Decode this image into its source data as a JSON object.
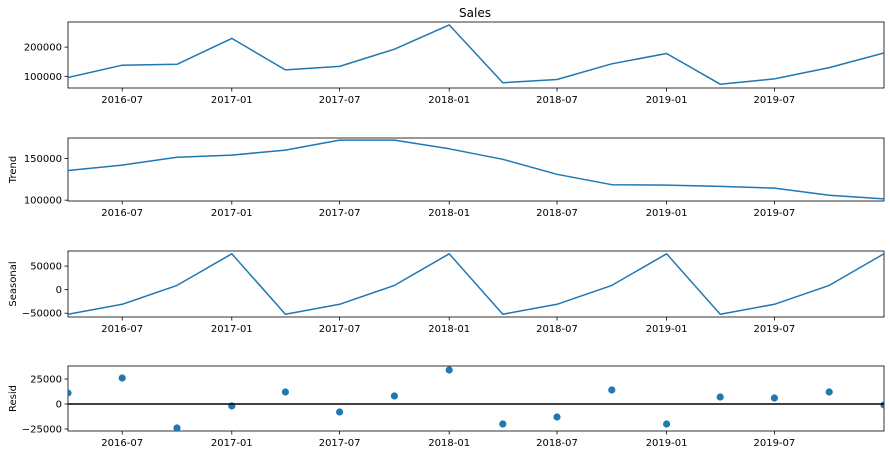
{
  "chart_data": [
    {
      "type": "line",
      "title": "Sales",
      "ylabel": "",
      "color": "#1f77b4",
      "x": [
        "2016-04-01",
        "2016-07-01",
        "2016-10-01",
        "2017-01-01",
        "2017-04-01",
        "2017-07-01",
        "2017-10-01",
        "2018-01-01",
        "2018-04-01",
        "2018-07-01",
        "2018-10-01",
        "2019-01-01",
        "2019-04-01",
        "2019-07-01",
        "2019-10-01",
        "2020-01-01"
      ],
      "values": [
        96000,
        138000,
        141000,
        230000,
        122000,
        134000,
        193000,
        276000,
        78000,
        89000,
        143000,
        178000,
        73000,
        91000,
        130000,
        180000
      ],
      "ylim": [
        60000,
        286000
      ],
      "yticks": [
        100000,
        200000
      ],
      "ytick_labels": [
        "100000",
        "200000"
      ]
    },
    {
      "type": "line",
      "title": "",
      "ylabel": "Trend",
      "color": "#1f77b4",
      "x": [
        "2016-04-01",
        "2016-07-01",
        "2016-10-01",
        "2017-01-01",
        "2017-04-01",
        "2017-07-01",
        "2017-10-01",
        "2018-01-01",
        "2018-04-01",
        "2018-07-01",
        "2018-10-01",
        "2019-01-01",
        "2019-04-01",
        "2019-07-01",
        "2019-10-01",
        "2020-01-01"
      ],
      "values": [
        135500,
        142000,
        151500,
        154000,
        160000,
        172000,
        172000,
        161500,
        149000,
        131000,
        118500,
        118000,
        116500,
        114500,
        106000,
        101500
      ],
      "ylim": [
        99000,
        174500
      ],
      "yticks": [
        100000,
        150000
      ],
      "ytick_labels": [
        "100000",
        "150000"
      ]
    },
    {
      "type": "line",
      "title": "",
      "ylabel": "Seasonal",
      "color": "#1f77b4",
      "x": [
        "2016-04-01",
        "2016-07-01",
        "2016-10-01",
        "2017-01-01",
        "2017-04-01",
        "2017-07-01",
        "2017-10-01",
        "2018-01-01",
        "2018-04-01",
        "2018-07-01",
        "2018-10-01",
        "2019-01-01",
        "2019-04-01",
        "2019-07-01",
        "2019-10-01",
        "2020-01-01"
      ],
      "values": [
        -52000,
        -31000,
        9000,
        76000,
        -52000,
        -31000,
        9000,
        76000,
        -52000,
        -31000,
        9000,
        76000,
        -52000,
        -31000,
        9000,
        76000
      ],
      "ylim": [
        -58000,
        82000
      ],
      "yticks": [
        -50000,
        0,
        50000
      ],
      "ytick_labels": [
        "−50000",
        "0",
        "50000"
      ]
    },
    {
      "type": "scatter",
      "title": "",
      "ylabel": "Resid",
      "color": "#1f77b4",
      "x": [
        "2016-04-01",
        "2016-07-01",
        "2016-10-01",
        "2017-01-01",
        "2017-04-01",
        "2017-07-01",
        "2017-10-01",
        "2018-01-01",
        "2018-04-01",
        "2018-07-01",
        "2018-10-01",
        "2019-01-01",
        "2019-04-01",
        "2019-07-01",
        "2019-10-01",
        "2020-01-01"
      ],
      "values": [
        11000,
        26000,
        -24000,
        -2000,
        12000,
        -8000,
        8000,
        34000,
        -20000,
        -13000,
        14000,
        -20000,
        7000,
        6000,
        12000,
        -1000
      ],
      "ylim": [
        -27000,
        38000
      ],
      "yticks": [
        -25000,
        0,
        25000
      ],
      "ytick_labels": [
        "−25000",
        "0",
        "25000"
      ],
      "zero_line": true
    }
  ],
  "x_axis": {
    "ticks": [
      "2016-07-01",
      "2017-01-01",
      "2017-07-01",
      "2018-01-01",
      "2018-07-01",
      "2019-01-01",
      "2019-07-01"
    ],
    "tick_labels": [
      "2016-07",
      "2017-01",
      "2017-07",
      "2018-01",
      "2018-07",
      "2019-01",
      "2019-07"
    ],
    "xlim": [
      "2016-04-01",
      "2020-01-01"
    ]
  }
}
